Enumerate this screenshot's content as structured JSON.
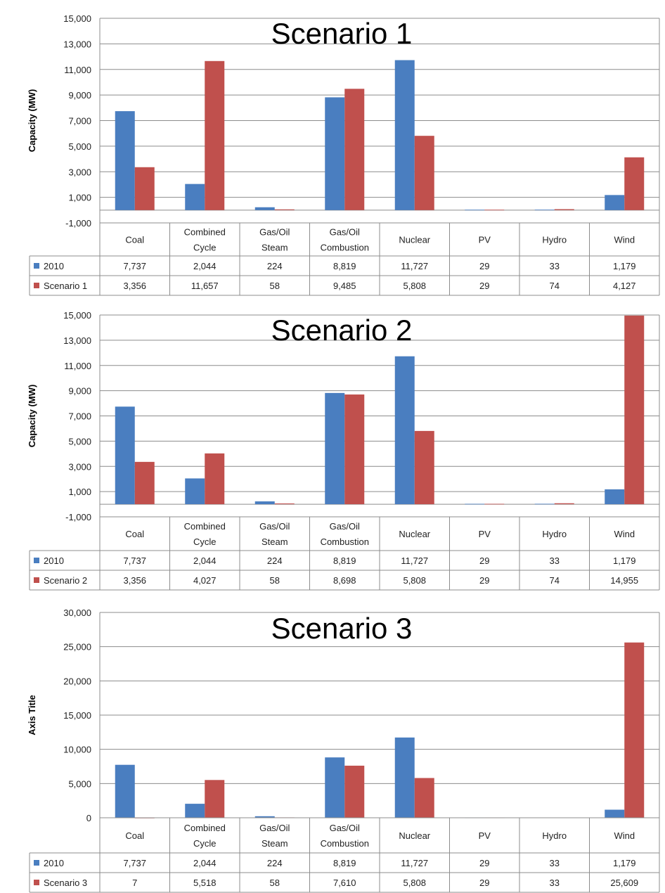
{
  "colors": {
    "series_2010": "#4a7ec0",
    "series_scenario": "#c0504d",
    "grid": "#8c8c8c",
    "border": "#8c8c8c"
  },
  "chart_data": [
    {
      "type": "bar",
      "title": "Scenario 1",
      "ylabel": "Capacity (MW)",
      "ylim": [
        -1000,
        15000
      ],
      "yticks": [
        -1000,
        1000,
        3000,
        5000,
        7000,
        9000,
        11000,
        13000,
        15000
      ],
      "yticks_labels": [
        "-1,000",
        "1,000",
        "3,000",
        "5,000",
        "7,000",
        "9,000",
        "11,000",
        "13,000",
        "15,000"
      ],
      "categories": [
        [
          "Coal"
        ],
        [
          "Combined",
          "Cycle"
        ],
        [
          "Gas/Oil",
          "Steam"
        ],
        [
          "Gas/Oil",
          "Combustion"
        ],
        [
          "Nuclear"
        ],
        [
          "PV"
        ],
        [
          "Hydro"
        ],
        [
          "Wind"
        ]
      ],
      "series": [
        {
          "name": "2010",
          "values": [
            7737,
            2044,
            224,
            8819,
            11727,
            29,
            33,
            1179
          ],
          "labels": [
            "7,737",
            "2,044",
            "224",
            "8,819",
            "11,727",
            "29",
            "33",
            "1,179"
          ]
        },
        {
          "name": "Scenario 1",
          "values": [
            3356,
            11657,
            58,
            9485,
            5808,
            29,
            74,
            4127
          ],
          "labels": [
            "3,356",
            "11,657",
            "58",
            "9,485",
            "5,808",
            "29",
            "74",
            "4,127"
          ]
        }
      ],
      "grid": true,
      "legend": "data-table"
    },
    {
      "type": "bar",
      "title": "Scenario 2",
      "ylabel": "Capacity (MW)",
      "ylim": [
        -1000,
        15000
      ],
      "yticks": [
        -1000,
        1000,
        3000,
        5000,
        7000,
        9000,
        11000,
        13000,
        15000
      ],
      "yticks_labels": [
        "-1,000",
        "1,000",
        "3,000",
        "5,000",
        "7,000",
        "9,000",
        "11,000",
        "13,000",
        "15,000"
      ],
      "categories": [
        [
          "Coal"
        ],
        [
          "Combined",
          "Cycle"
        ],
        [
          "Gas/Oil",
          "Steam"
        ],
        [
          "Gas/Oil",
          "Combustion"
        ],
        [
          "Nuclear"
        ],
        [
          "PV"
        ],
        [
          "Hydro"
        ],
        [
          "Wind"
        ]
      ],
      "series": [
        {
          "name": "2010",
          "values": [
            7737,
            2044,
            224,
            8819,
            11727,
            29,
            33,
            1179
          ],
          "labels": [
            "7,737",
            "2,044",
            "224",
            "8,819",
            "11,727",
            "29",
            "33",
            "1,179"
          ]
        },
        {
          "name": "Scenario 2",
          "values": [
            3356,
            4027,
            58,
            8698,
            5808,
            29,
            74,
            14955
          ],
          "labels": [
            "3,356",
            "4,027",
            "58",
            "8,698",
            "5,808",
            "29",
            "74",
            "14,955"
          ]
        }
      ],
      "grid": true,
      "legend": "data-table"
    },
    {
      "type": "bar",
      "title": "Scenario 3",
      "ylabel": "Axis Title",
      "ylim": [
        0,
        30000
      ],
      "yticks": [
        0,
        5000,
        10000,
        15000,
        20000,
        25000,
        30000
      ],
      "yticks_labels": [
        "0",
        "5,000",
        "10,000",
        "15,000",
        "20,000",
        "25,000",
        "30,000"
      ],
      "categories": [
        [
          "Coal"
        ],
        [
          "Combined",
          "Cycle"
        ],
        [
          "Gas/Oil",
          "Steam"
        ],
        [
          "Gas/Oil",
          "Combustion"
        ],
        [
          "Nuclear"
        ],
        [
          "PV"
        ],
        [
          "Hydro"
        ],
        [
          "Wind"
        ]
      ],
      "series": [
        {
          "name": "2010",
          "values": [
            7737,
            2044,
            224,
            8819,
            11727,
            29,
            33,
            1179
          ],
          "labels": [
            "7,737",
            "2,044",
            "224",
            "8,819",
            "11,727",
            "29",
            "33",
            "1,179"
          ]
        },
        {
          "name": "Scenario 3",
          "values": [
            7,
            5518,
            58,
            7610,
            5808,
            29,
            33,
            25609
          ],
          "labels": [
            "7",
            "5,518",
            "58",
            "7,610",
            "5,808",
            "29",
            "33",
            "25,609"
          ]
        }
      ],
      "grid": true,
      "legend": "data-table"
    }
  ]
}
